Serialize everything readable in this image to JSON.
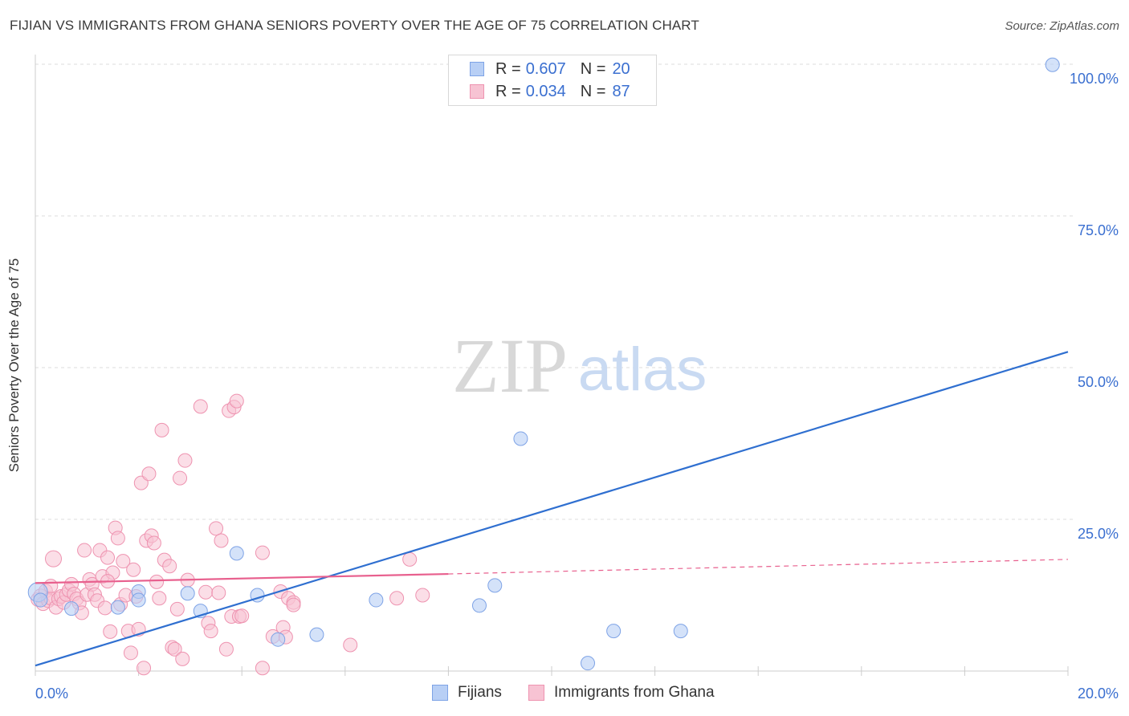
{
  "title": "FIJIAN VS IMMIGRANTS FROM GHANA SENIORS POVERTY OVER THE AGE OF 75 CORRELATION CHART",
  "source": "Source: ZipAtlas.com",
  "watermark": {
    "zip": "ZIP",
    "atlas": "atlas"
  },
  "legend": {
    "rows": [
      {
        "r_label": "R =",
        "r_value": "0.607",
        "n_label": "N =",
        "n_value": "20"
      },
      {
        "r_label": "R =",
        "r_value": "0.034",
        "n_label": "N =",
        "n_value": "87"
      }
    ]
  },
  "bottom_legend": {
    "series1": "Fijians",
    "series2": "Immigrants from Ghana"
  },
  "colors": {
    "fijian_fill": "#b8cff5",
    "fijian_stroke": "#7ea3e6",
    "fijian_line": "#2f6fd0",
    "ghana_fill": "#f7c3d3",
    "ghana_stroke": "#ee93b0",
    "ghana_line": "#e8608e",
    "axis_text": "#3a6fd0",
    "grid": "#dddddd"
  },
  "chart_data": {
    "type": "scatter",
    "title": "FIJIAN VS IMMIGRANTS FROM GHANA SENIORS POVERTY OVER THE AGE OF 75 CORRELATION CHART",
    "xlabel": "",
    "ylabel": "Seniors Poverty Over the Age of 75",
    "xlim": [
      0,
      20
    ],
    "ylim": [
      0,
      100
    ],
    "x_tick_labels": [
      "0.0%",
      "20.0%"
    ],
    "y_ticks": [
      25,
      50,
      75,
      100
    ],
    "y_tick_labels": [
      "25.0%",
      "50.0%",
      "75.0%",
      "100.0%"
    ],
    "series": [
      {
        "name": "Fijians",
        "points": [
          [
            0.05,
            13.0
          ],
          [
            0.1,
            11.7
          ],
          [
            0.7,
            10.3
          ],
          [
            1.6,
            10.5
          ],
          [
            2.0,
            13.1
          ],
          [
            2.0,
            11.7
          ],
          [
            2.95,
            12.8
          ],
          [
            3.2,
            9.9
          ],
          [
            3.9,
            19.4
          ],
          [
            4.3,
            12.5
          ],
          [
            4.7,
            5.2
          ],
          [
            5.45,
            6.0
          ],
          [
            6.6,
            11.7
          ],
          [
            8.6,
            10.8
          ],
          [
            8.9,
            14.1
          ],
          [
            9.4,
            38.3
          ],
          [
            10.7,
            1.3
          ],
          [
            11.2,
            6.6
          ],
          [
            12.5,
            6.6
          ],
          [
            19.7,
            99.9
          ]
        ],
        "trend": {
          "x0": 0,
          "y0": 0.9,
          "x1": 20,
          "y1": 52.6
        }
      },
      {
        "name": "Immigrants from Ghana",
        "points": [
          [
            0.05,
            11.8
          ],
          [
            0.1,
            12.4
          ],
          [
            0.15,
            11.1
          ],
          [
            0.2,
            13.2
          ],
          [
            0.25,
            11.6
          ],
          [
            0.3,
            12.0
          ],
          [
            0.35,
            18.5
          ],
          [
            0.4,
            10.5
          ],
          [
            0.45,
            11.9
          ],
          [
            0.5,
            12.3
          ],
          [
            0.55,
            11.3
          ],
          [
            0.6,
            12.6
          ],
          [
            0.65,
            13.3
          ],
          [
            0.7,
            14.3
          ],
          [
            0.75,
            12.7
          ],
          [
            0.8,
            11.9
          ],
          [
            0.85,
            11.2
          ],
          [
            0.9,
            9.6
          ],
          [
            0.95,
            19.9
          ],
          [
            1.0,
            12.6
          ],
          [
            1.05,
            15.1
          ],
          [
            1.1,
            14.3
          ],
          [
            1.15,
            12.6
          ],
          [
            1.2,
            11.6
          ],
          [
            1.25,
            19.9
          ],
          [
            1.3,
            15.6
          ],
          [
            1.35,
            10.4
          ],
          [
            1.4,
            18.7
          ],
          [
            1.45,
            6.5
          ],
          [
            1.5,
            16.2
          ],
          [
            1.55,
            23.6
          ],
          [
            1.6,
            21.9
          ],
          [
            1.65,
            11.0
          ],
          [
            1.7,
            18.1
          ],
          [
            1.75,
            12.5
          ],
          [
            1.8,
            6.6
          ],
          [
            1.85,
            3.0
          ],
          [
            1.9,
            16.7
          ],
          [
            1.95,
            12.3
          ],
          [
            2.0,
            6.9
          ],
          [
            2.05,
            31.0
          ],
          [
            2.1,
            0.5
          ],
          [
            2.15,
            21.5
          ],
          [
            2.2,
            32.5
          ],
          [
            2.25,
            22.3
          ],
          [
            2.3,
            21.1
          ],
          [
            2.35,
            14.7
          ],
          [
            2.4,
            12.0
          ],
          [
            2.45,
            39.7
          ],
          [
            2.5,
            18.3
          ],
          [
            2.6,
            17.3
          ],
          [
            2.65,
            3.9
          ],
          [
            2.7,
            3.6
          ],
          [
            2.75,
            10.2
          ],
          [
            2.8,
            31.8
          ],
          [
            2.85,
            2.0
          ],
          [
            2.9,
            34.7
          ],
          [
            2.95,
            15.0
          ],
          [
            3.2,
            43.6
          ],
          [
            3.3,
            13.0
          ],
          [
            3.35,
            7.9
          ],
          [
            3.4,
            6.6
          ],
          [
            3.5,
            23.5
          ],
          [
            3.55,
            12.9
          ],
          [
            3.6,
            21.5
          ],
          [
            3.7,
            3.6
          ],
          [
            3.75,
            42.9
          ],
          [
            3.8,
            9.0
          ],
          [
            3.85,
            43.5
          ],
          [
            3.9,
            44.5
          ],
          [
            3.95,
            9.0
          ],
          [
            4.0,
            9.1
          ],
          [
            4.4,
            0.5
          ],
          [
            4.4,
            19.5
          ],
          [
            4.6,
            5.7
          ],
          [
            4.75,
            13.1
          ],
          [
            4.8,
            7.2
          ],
          [
            4.85,
            5.6
          ],
          [
            4.9,
            12.0
          ],
          [
            5.0,
            11.3
          ],
          [
            5.0,
            10.9
          ],
          [
            6.1,
            4.3
          ],
          [
            7.0,
            12.0
          ],
          [
            7.25,
            18.4
          ],
          [
            7.5,
            12.5
          ],
          [
            1.4,
            14.8
          ],
          [
            0.3,
            14.0
          ]
        ],
        "trend": {
          "x0": 0,
          "y0": 14.5,
          "x1": 8,
          "y1": 16.0,
          "dashed_to_x": 20,
          "dashed_to_y": 18.4
        }
      }
    ]
  }
}
